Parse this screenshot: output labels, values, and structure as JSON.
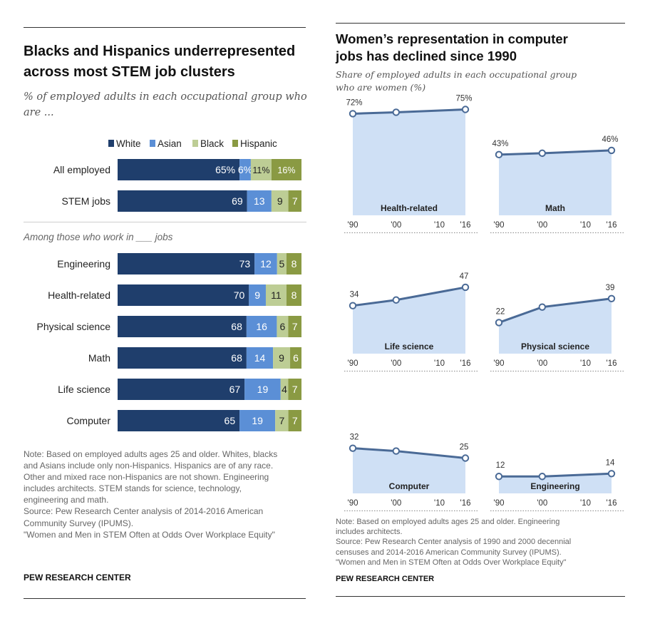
{
  "left_panel": {
    "title_line1": "Blacks and Hispanics underrepresented",
    "title_line2": "across most STEM job clusters",
    "subtitle_line1": "% of employed adults in each occupational group who",
    "subtitle_line2": "are ...",
    "section_label": "Among those who work in ___ jobs",
    "note_lines": [
      "Note: Based on employed adults ages 25 and older. Whites, blacks",
      "and Asians include only non-Hispanics. Hispanics are of any race.",
      "Other and mixed race non-Hispanics are not shown. Engineering",
      "includes architects. STEM stands for science, technology,",
      "engineering and math.",
      "Source: Pew Research Center analysis of 2014-2016 American",
      "Community Survey (IPUMS).",
      "\"Women and Men in STEM Often at Odds Over Workplace Equity\""
    ],
    "brand": "PEW RESEARCH CENTER"
  },
  "right_panel": {
    "title_line1": "Women’s representation in computer",
    "title_line2": "jobs has declined since 1990",
    "subtitle_line1": "Share of employed adults in each occupational group",
    "subtitle_line2": "who are women (%)",
    "note_lines": [
      "Note: Based on employed adults ages 25 and older. Engineering",
      "includes architects.",
      "Source: Pew Research Center analysis of 1990 and 2000 decennial",
      "censuses and 2014-2016 American Community Survey (IPUMS).",
      "\"Women and Men in STEM Often at Odds Over Workplace Equity\""
    ],
    "brand": "PEW RESEARCH CENTER"
  },
  "colors": {
    "white": "#1f3e6c",
    "asian": "#5b8fd6",
    "black": "#bdcd95",
    "hispanic": "#8a9a43",
    "area": "#cfe0f5",
    "line": "#4a6a96"
  },
  "chart_data": [
    {
      "type": "bar",
      "orientation": "horizontal",
      "stacked": true,
      "legend": "top",
      "categories": [
        "All employed",
        "STEM jobs",
        "Engineering",
        "Health-related",
        "Physical science",
        "Math",
        "Life science",
        "Computer"
      ],
      "series": [
        {
          "name": "White",
          "values": [
            65,
            69,
            73,
            70,
            68,
            68,
            67,
            65
          ],
          "labels": [
            "65%",
            "69",
            "73",
            "70",
            "68",
            "68",
            "67",
            "65"
          ]
        },
        {
          "name": "Asian",
          "values": [
            6,
            13,
            12,
            9,
            16,
            14,
            19,
            19
          ],
          "labels": [
            "6%",
            "13",
            "12",
            "9",
            "16",
            "14",
            "19",
            "19"
          ]
        },
        {
          "name": "Black",
          "values": [
            11,
            9,
            5,
            11,
            6,
            9,
            4,
            7
          ],
          "labels": [
            "11%",
            "9",
            "5",
            "11",
            "6",
            "9",
            "4",
            "7"
          ]
        },
        {
          "name": "Hispanic",
          "values": [
            16,
            7,
            8,
            8,
            7,
            6,
            7,
            7
          ],
          "labels": [
            "16%",
            "7",
            "8",
            "8",
            "7",
            "6",
            "7",
            "7"
          ]
        }
      ]
    },
    {
      "type": "area",
      "x": [
        1990,
        2000,
        2010,
        2016
      ],
      "x_tick_labels": [
        "'90",
        "'00",
        "'10",
        "'16"
      ],
      "ylim": [
        0,
        100
      ],
      "panels": [
        {
          "name": "Health-related",
          "x": [
            1990,
            2000,
            2016
          ],
          "values": [
            72,
            73,
            75
          ],
          "start_label": "72%",
          "end_label": "75%"
        },
        {
          "name": "Math",
          "x": [
            1990,
            2000,
            2016
          ],
          "values": [
            43,
            44,
            46
          ],
          "start_label": "43%",
          "end_label": "46%"
        },
        {
          "name": "Life science",
          "x": [
            1990,
            2000,
            2016
          ],
          "values": [
            34,
            38,
            47
          ],
          "start_label": "34",
          "end_label": "47"
        },
        {
          "name": "Physical science",
          "x": [
            1990,
            2000,
            2016
          ],
          "values": [
            22,
            33,
            39
          ],
          "start_label": "22",
          "end_label": "39"
        },
        {
          "name": "Computer",
          "x": [
            1990,
            2000,
            2016
          ],
          "values": [
            32,
            30,
            25
          ],
          "start_label": "32",
          "end_label": "25"
        },
        {
          "name": "Engineering",
          "x": [
            1990,
            2000,
            2016
          ],
          "values": [
            12,
            12,
            14
          ],
          "start_label": "12",
          "end_label": "14"
        }
      ]
    }
  ]
}
